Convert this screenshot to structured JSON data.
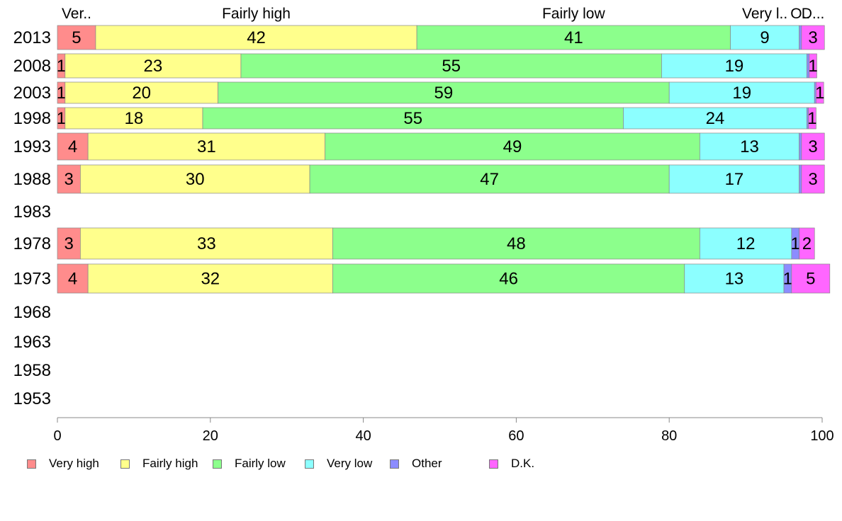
{
  "chart_data": {
    "type": "bar",
    "orientation": "horizontal",
    "stacked": true,
    "categories": [
      "2013",
      "2008",
      "2003",
      "1998",
      "1993",
      "1988",
      "1983",
      "1978",
      "1973",
      "1968",
      "1963",
      "1958",
      "1953"
    ],
    "series": [
      {
        "name": "Very high",
        "short_label": "Ver..",
        "color": "#ff8c8c",
        "values": [
          5,
          1,
          1,
          1,
          4,
          3,
          null,
          3,
          4,
          null,
          null,
          null,
          null
        ]
      },
      {
        "name": "Fairly high",
        "short_label": "Fairly high",
        "color": "#ffff8c",
        "values": [
          42,
          23,
          20,
          18,
          31,
          30,
          null,
          33,
          32,
          null,
          null,
          null,
          null
        ]
      },
      {
        "name": "Fairly low",
        "short_label": "Fairly low",
        "color": "#8cff8c",
        "values": [
          41,
          55,
          59,
          55,
          49,
          47,
          null,
          48,
          46,
          null,
          null,
          null,
          null
        ]
      },
      {
        "name": "Very low",
        "short_label": "Very l..",
        "color": "#8cffff",
        "values": [
          9,
          19,
          19,
          24,
          13,
          17,
          null,
          12,
          13,
          null,
          null,
          null,
          null
        ]
      },
      {
        "name": "Other",
        "short_label": "O..",
        "color": "#8c8cff",
        "values": [
          0.3,
          0.3,
          0.2,
          0.2,
          0.3,
          0.3,
          null,
          1,
          1,
          null,
          null,
          null,
          null
        ]
      },
      {
        "name": "D.K.",
        "short_label": "D...",
        "color": "#ff66ff",
        "values": [
          3,
          1,
          1,
          1,
          3,
          3,
          null,
          2,
          5,
          null,
          null,
          null,
          null
        ]
      }
    ],
    "data_labels": [
      [
        "5",
        "42",
        "41",
        "9",
        "",
        "3"
      ],
      [
        "1",
        "23",
        "55",
        "19",
        "",
        "1"
      ],
      [
        "1",
        "20",
        "59",
        "19",
        "",
        "1"
      ],
      [
        "1",
        "18",
        "55",
        "24",
        "",
        "1"
      ],
      [
        "4",
        "31",
        "49",
        "13",
        "",
        "3"
      ],
      [
        "3",
        "30",
        "47",
        "17",
        "",
        "3"
      ],
      [
        "",
        "",
        "",
        "",
        "",
        ""
      ],
      [
        "3",
        "33",
        "48",
        "12",
        "1",
        "2"
      ],
      [
        "4",
        "32",
        "46",
        "13",
        "1",
        "5"
      ],
      [
        "",
        "",
        "",
        "",
        "",
        ""
      ],
      [
        "",
        "",
        "",
        "",
        "",
        ""
      ],
      [
        "",
        "",
        "",
        "",
        "",
        ""
      ],
      [
        "",
        "",
        "",
        "",
        "",
        ""
      ]
    ],
    "xlim": [
      0,
      100
    ],
    "x_ticks": [
      "0",
      "20",
      "40",
      "60",
      "80",
      "100"
    ],
    "grid": false,
    "legend_position": "bottom",
    "title": "",
    "xlabel": "",
    "ylabel": ""
  }
}
